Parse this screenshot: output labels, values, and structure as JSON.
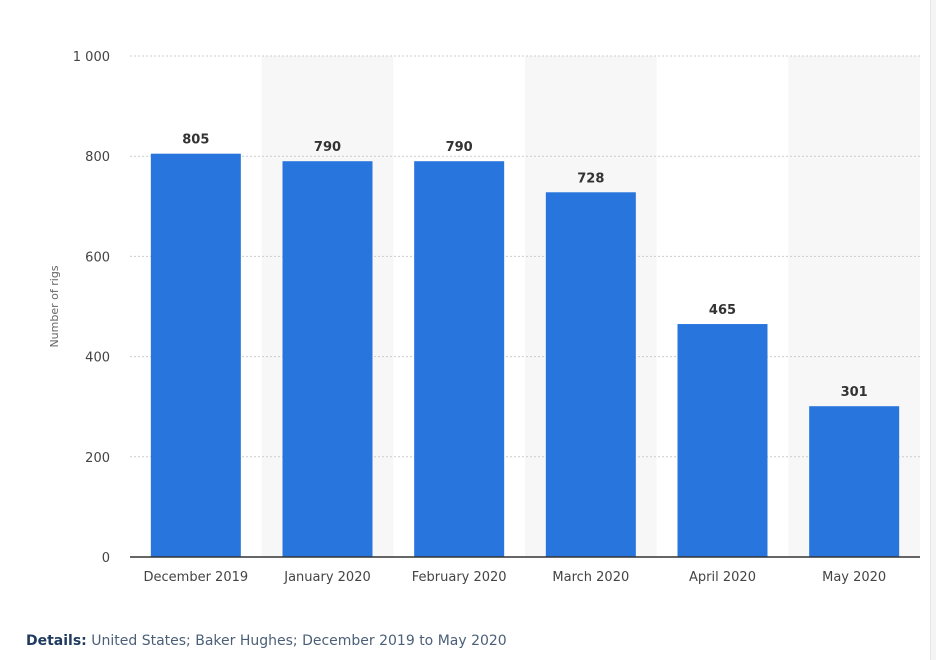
{
  "chart_data": {
    "type": "bar",
    "categories": [
      "December 2019",
      "January 2020",
      "February 2020",
      "March 2020",
      "April 2020",
      "May 2020"
    ],
    "values": [
      805,
      790,
      790,
      728,
      465,
      301
    ],
    "data_labels": [
      "805",
      "790",
      "790",
      "728",
      "465",
      "301"
    ],
    "xlabel": "",
    "ylabel": "Number of rigs",
    "ylim": [
      0,
      1000
    ],
    "yticks": [
      0,
      200,
      400,
      600,
      800,
      1000
    ],
    "ytick_labels": [
      "0",
      "200",
      "400",
      "600",
      "800",
      "1 000"
    ],
    "grid": true,
    "legend": "none",
    "colors": {
      "bar": "#2876dd",
      "alt_band": "#f7f7f7",
      "grid": "#cccccc",
      "axis": "#333333"
    }
  },
  "footer": {
    "details_label": "Details:",
    "details_text": "United States; Baker Hughes; December 2019 to May 2020"
  }
}
